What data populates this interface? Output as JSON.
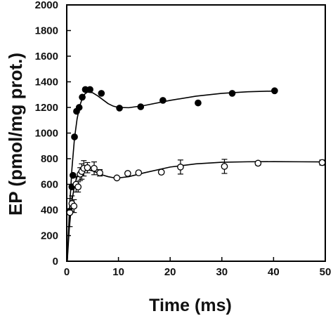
{
  "chart_data": {
    "type": "scatter",
    "title": "",
    "xlabel": "Time (ms)",
    "ylabel": "EP (pmol/mg prot.)",
    "xlim": [
      0,
      50
    ],
    "ylim": [
      0,
      2000
    ],
    "xticks": [
      0,
      10,
      20,
      30,
      40,
      50
    ],
    "yticks": [
      0,
      200,
      400,
      600,
      800,
      1000,
      1200,
      1400,
      1600,
      1800,
      2000
    ],
    "grid": false,
    "legend": "none",
    "series": [
      {
        "marker": "filled-circle",
        "color": "#000000",
        "points": [
          {
            "x": 0.5,
            "y": 390
          },
          {
            "x": 1.0,
            "y": 580
          },
          {
            "x": 1.2,
            "y": 670
          },
          {
            "x": 1.5,
            "y": 970
          },
          {
            "x": 1.9,
            "y": 1170
          },
          {
            "x": 2.4,
            "y": 1200
          },
          {
            "x": 3.0,
            "y": 1280
          },
          {
            "x": 3.6,
            "y": 1340
          },
          {
            "x": 4.5,
            "y": 1340
          },
          {
            "x": 6.7,
            "y": 1310
          },
          {
            "x": 10.2,
            "y": 1195
          },
          {
            "x": 14.3,
            "y": 1205
          },
          {
            "x": 18.6,
            "y": 1255
          },
          {
            "x": 25.4,
            "y": 1235
          },
          {
            "x": 32.0,
            "y": 1310
          },
          {
            "x": 40.2,
            "y": 1330
          }
        ],
        "fit_curve": [
          {
            "x": 0.1,
            "y": 0
          },
          {
            "x": 0.5,
            "y": 380
          },
          {
            "x": 1.0,
            "y": 720
          },
          {
            "x": 1.5,
            "y": 960
          },
          {
            "x": 2.0,
            "y": 1110
          },
          {
            "x": 2.5,
            "y": 1210
          },
          {
            "x": 3.0,
            "y": 1270
          },
          {
            "x": 3.5,
            "y": 1305
          },
          {
            "x": 4.0,
            "y": 1320
          },
          {
            "x": 5.0,
            "y": 1315
          },
          {
            "x": 6.0,
            "y": 1290
          },
          {
            "x": 7.0,
            "y": 1260
          },
          {
            "x": 8.0,
            "y": 1230
          },
          {
            "x": 9.0,
            "y": 1210
          },
          {
            "x": 10.0,
            "y": 1200
          },
          {
            "x": 12.0,
            "y": 1198
          },
          {
            "x": 15.0,
            "y": 1215
          },
          {
            "x": 20.0,
            "y": 1255
          },
          {
            "x": 25.0,
            "y": 1288
          },
          {
            "x": 30.0,
            "y": 1310
          },
          {
            "x": 35.0,
            "y": 1322
          },
          {
            "x": 40.0,
            "y": 1328
          }
        ]
      },
      {
        "marker": "open-circle",
        "color": "#000000",
        "points": [
          {
            "x": 0.6,
            "y": 380,
            "err": 110
          },
          {
            "x": 1.0,
            "y": 450,
            "err": 60
          },
          {
            "x": 1.4,
            "y": 430,
            "err": 50
          },
          {
            "x": 1.8,
            "y": 600,
            "err": 60
          },
          {
            "x": 2.2,
            "y": 580,
            "err": 40
          },
          {
            "x": 2.6,
            "y": 680,
            "err": 50
          },
          {
            "x": 2.9,
            "y": 700,
            "err": 60
          },
          {
            "x": 3.3,
            "y": 725,
            "err": 60
          },
          {
            "x": 4.0,
            "y": 730,
            "err": 40
          },
          {
            "x": 5.3,
            "y": 725,
            "err": 50
          },
          {
            "x": 6.4,
            "y": 690,
            "err": 25
          },
          {
            "x": 9.7,
            "y": 650,
            "err": 0
          },
          {
            "x": 11.8,
            "y": 685,
            "err": 0
          },
          {
            "x": 13.9,
            "y": 690,
            "err": 0
          },
          {
            "x": 18.3,
            "y": 695,
            "err": 0
          },
          {
            "x": 22.0,
            "y": 735,
            "err": 55
          },
          {
            "x": 30.5,
            "y": 740,
            "err": 55
          },
          {
            "x": 37.0,
            "y": 765,
            "err": 15
          },
          {
            "x": 49.4,
            "y": 770,
            "err": 20
          }
        ],
        "fit_curve": [
          {
            "x": 0.1,
            "y": 0
          },
          {
            "x": 0.5,
            "y": 260
          },
          {
            "x": 1.0,
            "y": 470
          },
          {
            "x": 1.5,
            "y": 590
          },
          {
            "x": 2.0,
            "y": 660
          },
          {
            "x": 2.5,
            "y": 695
          },
          {
            "x": 3.0,
            "y": 710
          },
          {
            "x": 4.0,
            "y": 715
          },
          {
            "x": 5.0,
            "y": 705
          },
          {
            "x": 6.0,
            "y": 690
          },
          {
            "x": 7.0,
            "y": 672
          },
          {
            "x": 8.0,
            "y": 660
          },
          {
            "x": 9.0,
            "y": 652
          },
          {
            "x": 10.0,
            "y": 650
          },
          {
            "x": 12.0,
            "y": 660
          },
          {
            "x": 15.0,
            "y": 690
          },
          {
            "x": 20.0,
            "y": 735
          },
          {
            "x": 25.0,
            "y": 760
          },
          {
            "x": 30.0,
            "y": 772
          },
          {
            "x": 35.0,
            "y": 776
          },
          {
            "x": 40.0,
            "y": 777
          },
          {
            "x": 45.0,
            "y": 776
          },
          {
            "x": 50.0,
            "y": 775
          }
        ]
      }
    ]
  }
}
